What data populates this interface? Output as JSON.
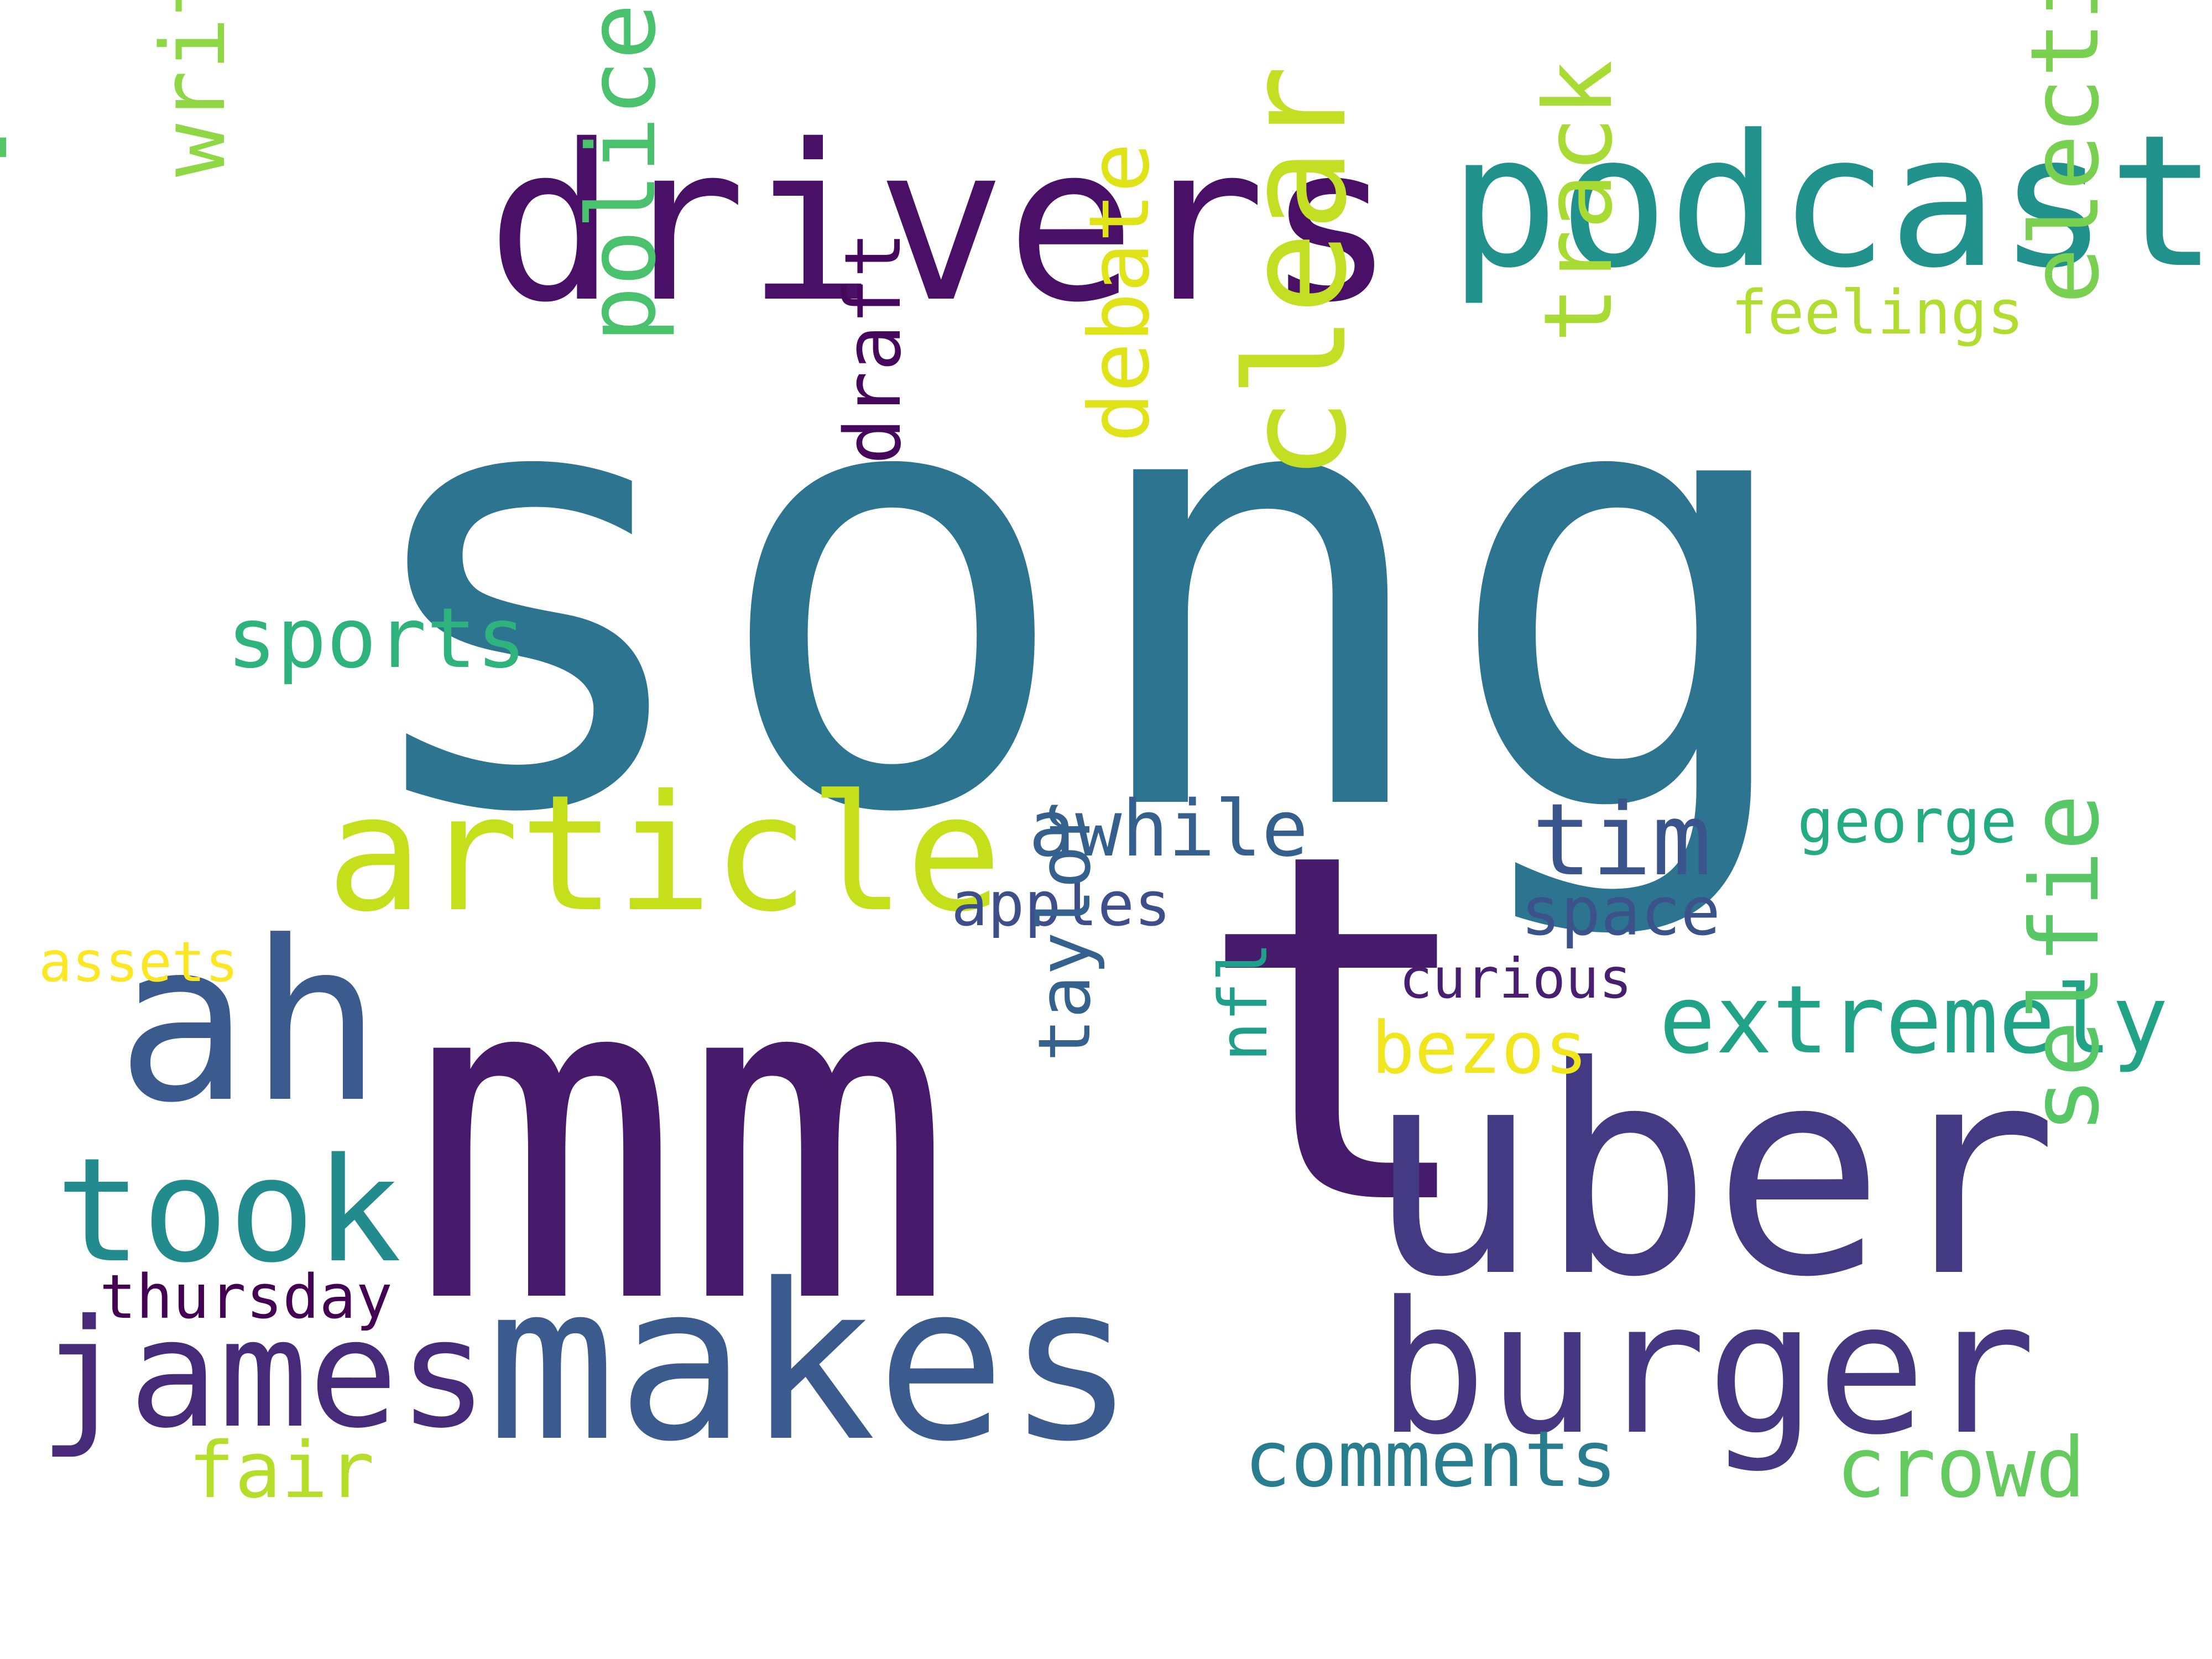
{
  "words": [
    {
      "id": "song",
      "text": "song",
      "color": "#2c7490",
      "rotated": false
    },
    {
      "id": "mm",
      "text": "mm",
      "color": "#481a6c",
      "rotated": false
    },
    {
      "id": "t",
      "text": "t",
      "color": "#471b6b",
      "rotated": false
    },
    {
      "id": "uber",
      "text": "uber",
      "color": "#433a83",
      "rotated": false
    },
    {
      "id": "drivers",
      "text": "drivers",
      "color": "#4a0f67",
      "rotated": false
    },
    {
      "id": "podcast",
      "text": "podcast",
      "color": "#21918c",
      "rotated": false
    },
    {
      "id": "photo",
      "text": "photo",
      "color": "#56c667",
      "rotated": true
    },
    {
      "id": "article",
      "text": "article",
      "color": "#c5df1b",
      "rotated": false
    },
    {
      "id": "ah",
      "text": "ah",
      "color": "#3b5a8e",
      "rotated": false
    },
    {
      "id": "took",
      "text": "took",
      "color": "#228b8d",
      "rotated": false
    },
    {
      "id": "james",
      "text": "james",
      "color": "#472a7a",
      "rotated": false
    },
    {
      "id": "makes",
      "text": "makes",
      "color": "#3b5a8e",
      "rotated": false
    },
    {
      "id": "burger",
      "text": "burger",
      "color": "#453781",
      "rotated": false
    },
    {
      "id": "clear",
      "text": "clear",
      "color": "#c2df23",
      "rotated": true
    },
    {
      "id": "written",
      "text": "written",
      "color": "#8fd744",
      "rotated": true
    },
    {
      "id": "police",
      "text": "police",
      "color": "#4ac16d",
      "rotated": true
    },
    {
      "id": "debate",
      "text": "debate",
      "color": "#dfe318",
      "rotated": true
    },
    {
      "id": "track",
      "text": "track",
      "color": "#a8db34",
      "rotated": true
    },
    {
      "id": "election",
      "text": "election",
      "color": "#7ad151",
      "rotated": true
    },
    {
      "id": "draft",
      "text": "draft",
      "color": "#46085c",
      "rotated": true
    },
    {
      "id": "sports",
      "text": "sports",
      "color": "#2eb37c",
      "rotated": false
    },
    {
      "id": "awhile",
      "text": "awhile",
      "color": "#35608d",
      "rotated": false
    },
    {
      "id": "tim",
      "text": "tim",
      "color": "#3a548c",
      "rotated": false
    },
    {
      "id": "feelings",
      "text": "feelings",
      "color": "#b0dd2f",
      "rotated": false
    },
    {
      "id": "george",
      "text": "george",
      "color": "#25ab82",
      "rotated": false
    },
    {
      "id": "apples",
      "text": "apples",
      "color": "#3d4e8a",
      "rotated": false
    },
    {
      "id": "space",
      "text": "space",
      "color": "#3b528b",
      "rotated": false
    },
    {
      "id": "assets",
      "text": "assets",
      "color": "#fde725",
      "rotated": false
    },
    {
      "id": "curious",
      "text": "curious",
      "color": "#481f70",
      "rotated": false
    },
    {
      "id": "bezos",
      "text": "bezos",
      "color": "#f1e51d",
      "rotated": false
    },
    {
      "id": "extremely",
      "text": "extremely",
      "color": "#20a386",
      "rotated": false
    },
    {
      "id": "nfl",
      "text": "nfl",
      "color": "#1f9e89",
      "rotated": true
    },
    {
      "id": "taylor",
      "text": "taylor",
      "color": "#34618d",
      "rotated": true
    },
    {
      "id": "selfie",
      "text": "selfie",
      "color": "#58c765",
      "rotated": true
    },
    {
      "id": "thursday",
      "text": "thursday",
      "color": "#440154",
      "rotated": false
    },
    {
      "id": "fair",
      "text": "fair",
      "color": "#b5de2b",
      "rotated": false
    },
    {
      "id": "comments",
      "text": "comments",
      "color": "#287d8e",
      "rotated": false
    },
    {
      "id": "crowd",
      "text": "crowd",
      "color": "#65cb5e",
      "rotated": false
    }
  ]
}
